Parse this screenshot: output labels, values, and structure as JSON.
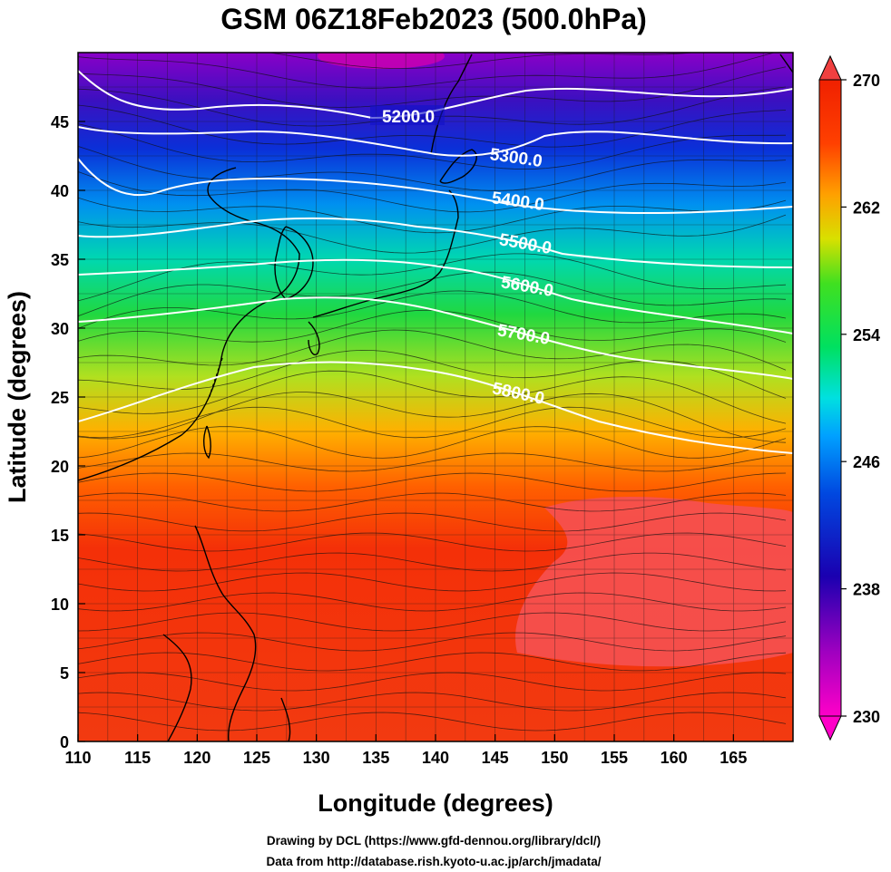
{
  "title": "GSM 06Z18Feb2023 (500.0hPa)",
  "x_axis": {
    "label": "Longitude (degrees)",
    "ticks": [
      "110",
      "115",
      "120",
      "125",
      "130",
      "135",
      "140",
      "145",
      "150",
      "155",
      "160",
      "165"
    ]
  },
  "y_axis": {
    "label": "Latitude  (degrees)",
    "ticks": [
      "0",
      "5",
      "10",
      "15",
      "20",
      "25",
      "30",
      "35",
      "40",
      "45"
    ]
  },
  "colorbar": {
    "labels": [
      "270",
      "262",
      "254",
      "246",
      "238",
      "230"
    ],
    "palette": [
      "#ff00c8",
      "#a000c0",
      "#1a00b0",
      "#0048e0",
      "#00c8ff",
      "#00e060",
      "#40e020",
      "#d8e000",
      "#ffa000",
      "#ff4000",
      "#f02000",
      "#ff5050"
    ]
  },
  "contours": [
    {
      "label": "5200.0"
    },
    {
      "label": "5300.0"
    },
    {
      "label": "5400.0"
    },
    {
      "label": "5500.0"
    },
    {
      "label": "5600.0"
    },
    {
      "label": "5700.0"
    },
    {
      "label": "5800.0"
    }
  ],
  "credits": {
    "line1": "Drawing by DCL (https://www.gfd-dennou.org/library/dcl/)",
    "line2": "Data from http://database.rish.kyoto-u.ac.jp/arch/jmadata/"
  }
}
